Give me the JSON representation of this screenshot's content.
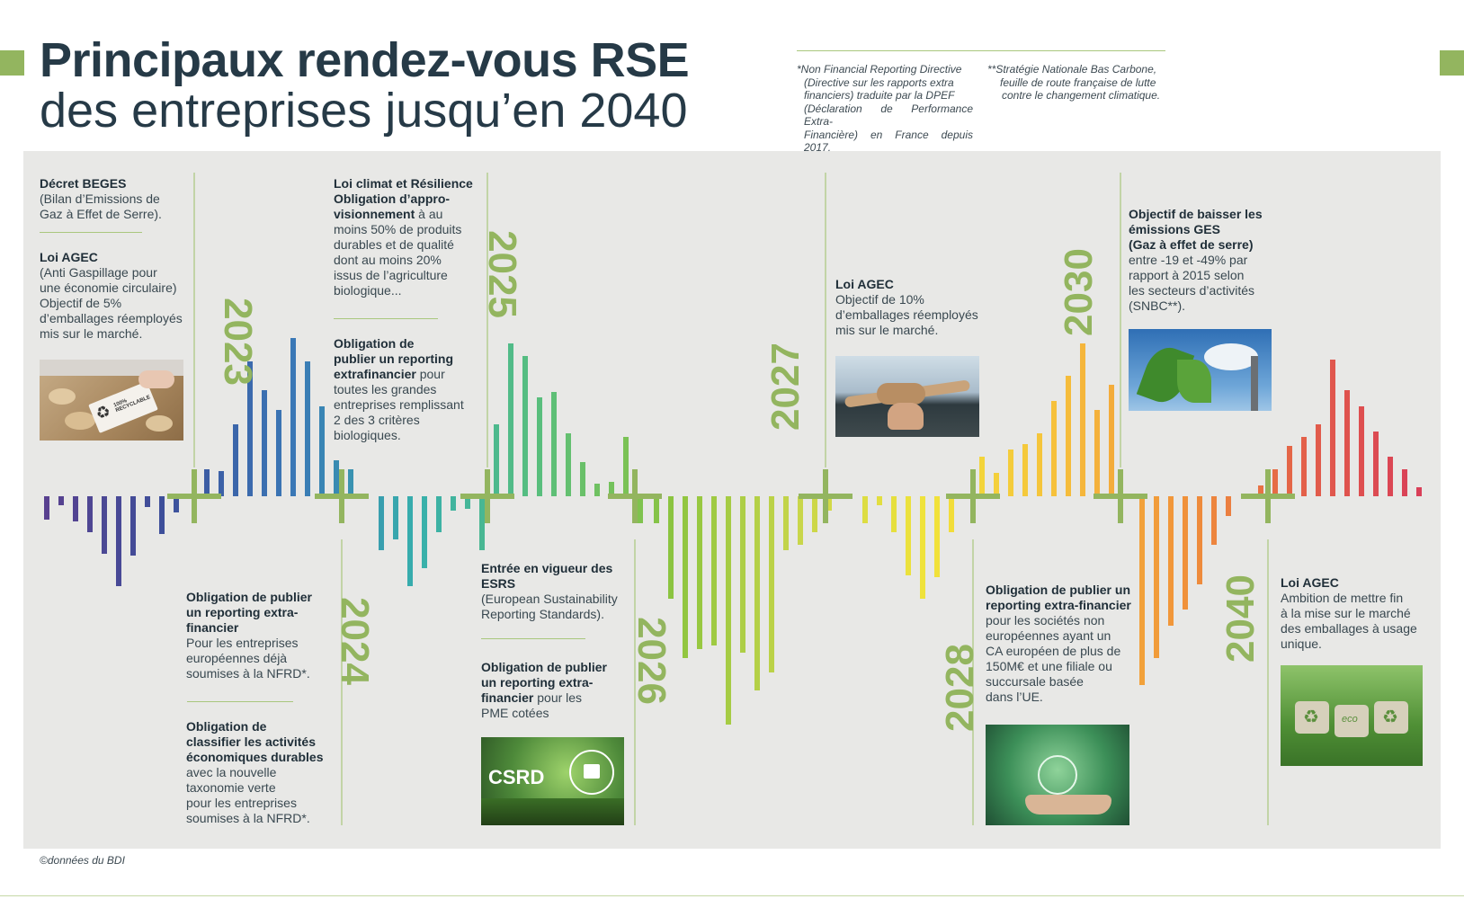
{
  "title": {
    "line1": "Principaux rendez-vous RSE",
    "line2": "des entreprises jusqu’en 2040"
  },
  "footnotes": {
    "nfrd": [
      "*Non Financial Reporting Directive",
      "(Directive  sur les rapports extra",
      "financiers) traduite par la DPEF",
      "(Déclaration de Performance Extra-",
      "Financière) en France depuis 2017."
    ],
    "snbc": [
      "**Stratégie Nationale Bas Carbone,",
      "feuille de route française de lutte",
      "contre le changement climatique."
    ]
  },
  "years": {
    "y2023": "2023",
    "y2024": "2024",
    "y2025": "2025",
    "y2026": "2026",
    "y2027": "2027",
    "y2028": "2028",
    "y2030": "2030",
    "y2040": "2040"
  },
  "events": {
    "beges": {
      "title": "Décret BEGES",
      "body": [
        "(Bilan d’Emissions de",
        "Gaz à Effet de Serre)."
      ]
    },
    "agec1": {
      "title": "Loi AGEC",
      "body": [
        "(Anti Gaspillage pour",
        "une économie circulaire)",
        "Objectif de 5%",
        "d’emballages réemployés",
        "mis sur le marché."
      ]
    },
    "reporting_nfrd": {
      "title": [
        "Obligation de publier",
        "un reporting extra-",
        "financier"
      ],
      "body": [
        "Pour les entreprises",
        "européennes déjà",
        "soumises à la NFRD*."
      ]
    },
    "taxonomie": {
      "title": [
        "Obligation de",
        "classifier les activités",
        "économiques durables"
      ],
      "body": [
        "avec la nouvelle",
        "taxonomie verte",
        "pour les entreprises",
        "soumises à la NFRD*."
      ]
    },
    "climat": {
      "title": [
        "Loi climat et Résilience",
        "Obligation d’appro-",
        "visionnement"
      ],
      "body_first": " à au",
      "body": [
        "moins 50% de produits",
        "durables et de qualité",
        "dont au moins 20%",
        "issus de l’agriculture",
        "biologique..."
      ]
    },
    "reporting_grandes": {
      "title": [
        "Obligation de",
        "publier un reporting",
        "extrafinancier"
      ],
      "body_first": " pour",
      "body": [
        "toutes les grandes",
        "entreprises remplissant",
        "2 des 3 critères",
        "biologiques."
      ]
    },
    "esrs": {
      "title": [
        "Entrée en vigueur des",
        "ESRS"
      ],
      "body": [
        "(European Sustainability",
        "Reporting Standards)."
      ]
    },
    "pme": {
      "title": [
        "Obligation de publier",
        "un reporting extra-",
        "financier"
      ],
      "body_first": " pour les",
      "body": [
        "PME cotées"
      ]
    },
    "agec2": {
      "title": "Loi AGEC",
      "body": [
        "Objectif de 10%",
        "d’emballages réemployés",
        "mis sur le marché."
      ]
    },
    "non_euro": {
      "title": [
        "Obligation de publier un",
        "reporting extra-financier"
      ],
      "body": [
        "pour les sociétés non",
        "européennes ayant un",
        "CA européen de plus de",
        "150M€ et une filiale ou",
        "succursale basée",
        "dans l’UE."
      ]
    },
    "ges": {
      "title": [
        "Objectif de baisser les",
        "émissions GES",
        "(Gaz à effet de serre)"
      ],
      "body": [
        "entre -19 et -49% par",
        "rapport à 2015 selon",
        "les secteurs d’activités",
        "(SNBC**)."
      ]
    },
    "agec3": {
      "title": "Loi AGEC",
      "body": [
        "Ambition de mettre fin",
        "à la mise sur le marché",
        "des emballages à usage",
        "unique."
      ]
    }
  },
  "photos": {
    "csrd_label": "CSRD",
    "recycle_label": "100% RECYCLABLE",
    "eco_label": "eco"
  },
  "credit": "©données du BDI",
  "colors": {
    "title": "#263a47",
    "accent_green": "#93b55f",
    "panel": "#e8e8e6",
    "spectrum": [
      "#5b3f8e",
      "#3d4f9a",
      "#3a77b6",
      "#37b0ac",
      "#5bbf7a",
      "#8cc43f",
      "#c9d64a",
      "#f1e33a",
      "#f6c03b",
      "#f0923a",
      "#e25d4a",
      "#d73a5a"
    ]
  }
}
